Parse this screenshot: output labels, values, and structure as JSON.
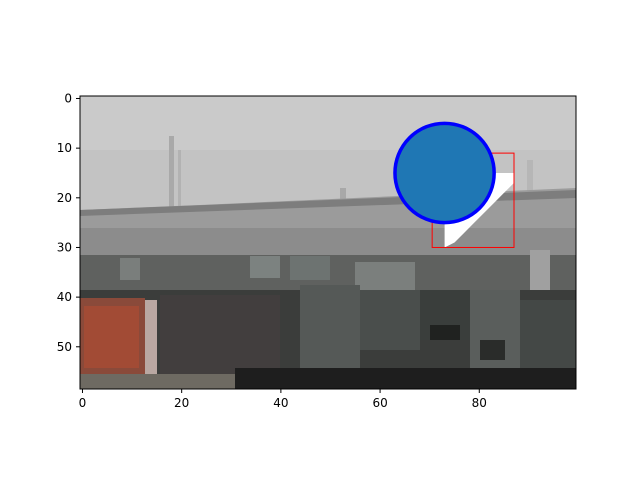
{
  "chart_data": {
    "type": "image",
    "title": "",
    "xlabel": "",
    "ylabel": "",
    "xlim": [
      -0.5,
      99.5
    ],
    "ylim": [
      58.5,
      -0.5
    ],
    "xticks": [
      0,
      20,
      40,
      60,
      80
    ],
    "yticks": [
      0,
      10,
      20,
      30,
      40,
      50
    ],
    "grid": false,
    "image_description": "low-resolution photograph of a building exterior with a pale gray sky",
    "overlays": {
      "rectangle": {
        "x0": 70.5,
        "y0": 11,
        "x1": 87,
        "y1": 30,
        "edgecolor": "#ff0000"
      },
      "mask_region": {
        "color": "#ffffff",
        "polygon": [
          [
            73,
            15
          ],
          [
            87,
            15
          ],
          [
            87,
            17
          ],
          [
            85,
            19
          ],
          [
            83,
            21
          ],
          [
            81,
            23
          ],
          [
            79,
            25
          ],
          [
            77,
            27
          ],
          [
            75,
            29
          ],
          [
            73,
            30
          ]
        ]
      },
      "circle": {
        "cx": 73,
        "cy": 15,
        "r": 10,
        "facecolor": "#1f77b4",
        "edgecolor": "#0000ff"
      }
    }
  },
  "colors": {
    "sky": "#cacaca",
    "building": "#8a8a8a",
    "ground": "#2a2c2a",
    "spine": "#000000"
  }
}
